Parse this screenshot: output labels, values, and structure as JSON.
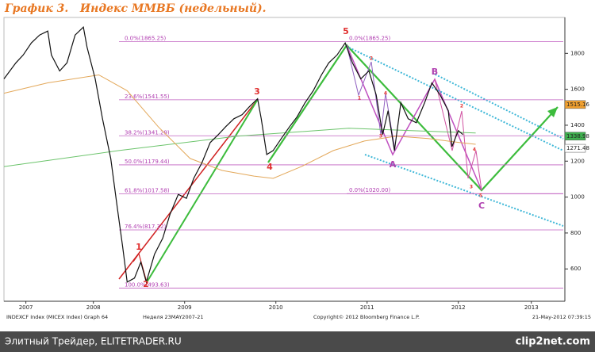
{
  "title": "График 3.   Индекс ММВБ (недельный).",
  "chart_data": {
    "type": "line",
    "xlim": [
      2007.52,
      2013.65
    ],
    "ylim": [
      420,
      2000
    ],
    "xticks": [
      {
        "value": 2007.76,
        "label": "2007"
      },
      {
        "value": 2008.5,
        "label": "2008"
      },
      {
        "value": 2009.5,
        "label": "2009"
      },
      {
        "value": 2010.5,
        "label": "2010"
      },
      {
        "value": 2011.5,
        "label": "2011"
      },
      {
        "value": 2012.5,
        "label": "2012"
      },
      {
        "value": 2013.3,
        "label": "2013"
      }
    ],
    "yticks": [
      600,
      800,
      1000,
      1200,
      1400,
      1600,
      1800
    ],
    "series": [
      {
        "color": "#111111",
        "x": [
          2007.52,
          2007.65,
          2007.73,
          2007.82,
          2007.91,
          2008.0,
          2008.04,
          2008.13,
          2008.21,
          2008.3,
          2008.39,
          2008.43,
          2008.52,
          2008.6,
          2008.69,
          2008.76,
          2008.82,
          2008.87,
          2008.95,
          2009.02,
          2009.08,
          2009.17,
          2009.26,
          2009.34,
          2009.43,
          2009.52,
          2009.6,
          2009.69,
          2009.78,
          2009.87,
          2009.95,
          2010.04,
          2010.13,
          2010.21,
          2010.3,
          2010.34,
          2010.4,
          2010.47,
          2010.56,
          2010.65,
          2010.73,
          2010.82,
          2010.91,
          2011.0,
          2011.08,
          2011.17,
          2011.26,
          2011.34,
          2011.43,
          2011.52,
          2011.6,
          2011.67,
          2011.73,
          2011.8,
          2011.87,
          2011.95,
          2012.04,
          2012.13,
          2012.21,
          2012.3,
          2012.39,
          2012.43,
          2012.5,
          2012.55
        ],
        "values": [
          1658,
          1747,
          1791,
          1858,
          1902,
          1924,
          1791,
          1702,
          1747,
          1902,
          1946,
          1835,
          1658,
          1436,
          1215,
          949,
          727,
          527,
          549,
          638,
          527,
          682,
          771,
          904,
          1015,
          993,
          1104,
          1192,
          1303,
          1348,
          1392,
          1436,
          1459,
          1503,
          1547,
          1436,
          1237,
          1259,
          1326,
          1392,
          1445,
          1525,
          1592,
          1680,
          1747,
          1791,
          1858,
          1747,
          1658,
          1702,
          1569,
          1348,
          1481,
          1259,
          1525,
          1436,
          1414,
          1525,
          1636,
          1569,
          1481,
          1281,
          1370,
          1348
        ]
      },
      {
        "color": "#e3a85a",
        "x": [
          2007.52,
          2008.0,
          2008.56,
          2008.87,
          2009.21,
          2009.56,
          2009.91,
          2010.26,
          2010.47,
          2010.78,
          2011.13,
          2011.47,
          2011.82,
          2012.17,
          2012.52,
          2012.69
        ],
        "values": [
          1578,
          1636,
          1680,
          1592,
          1392,
          1215,
          1148,
          1117,
          1104,
          1170,
          1259,
          1312,
          1339,
          1326,
          1303,
          1294
        ]
      },
      {
        "color": "#6cc46c",
        "x": [
          2007.52,
          2008.78,
          2010.08,
          2011.3,
          2012.69
        ],
        "values": [
          1170,
          1259,
          1339,
          1383,
          1357
        ]
      }
    ],
    "fib_levels": [
      {
        "value": 1865.25,
        "label": "0.0%(1865.25)"
      },
      {
        "value": 1541.55,
        "label": "23.6%(1541.55)"
      },
      {
        "value": 1341.29,
        "label": "38.2%(1341.29)"
      },
      {
        "value": 1179.44,
        "label": "50.0%(1179.44)"
      },
      {
        "value": 1017.58,
        "label": "61.8%(1017.58)"
      },
      {
        "value": 817.32,
        "label": "76.4%(817.32)"
      },
      {
        "value": 493.63,
        "label": "100.0%(493.63)"
      }
    ],
    "fib2_levels": [
      {
        "value": 1865.25,
        "label": "0.0%(1865.25)"
      },
      {
        "value": 1020.0,
        "label": "0.0%(1020.00)"
      }
    ],
    "price_labels": [
      {
        "value": 1515.16,
        "label": "1515.16",
        "color": "#f0a030"
      },
      {
        "value": 1338.98,
        "label": "1338.98",
        "color": "#3fb04f"
      },
      {
        "value": 1271.48,
        "label": "1271.48",
        "color": "#ffffff"
      }
    ],
    "annotations": [
      {
        "text": "1",
        "color": "#e03030"
      },
      {
        "text": "2",
        "color": "#e03030"
      },
      {
        "text": "3",
        "color": "#e03030"
      },
      {
        "text": "4",
        "color": "#e03030"
      },
      {
        "text": "5",
        "color": "#e03030"
      },
      {
        "text": "A",
        "color": "#b040b0"
      },
      {
        "text": "B",
        "color": "#b040b0"
      },
      {
        "text": "C",
        "color": "#b040b0"
      },
      {
        "text": "1",
        "color": "#e03030"
      },
      {
        "text": "2",
        "color": "#e03030"
      },
      {
        "text": "3",
        "color": "#e03030"
      },
      {
        "text": "4",
        "color": "#e03030"
      },
      {
        "text": "2",
        "color": "#e03030"
      },
      {
        "text": "4",
        "color": "#e03030"
      },
      {
        "text": "3",
        "color": "#e03030"
      },
      {
        "text": "5",
        "color": "#e03030"
      }
    ],
    "footer": [
      "INDEXCF Index (MICEX Index) Graph 64",
      "Неделя 23MAY2007-21",
      "Copyright© 2012 Bloomberg Finance L.P.",
      "21-May-2012 07:39:15"
    ]
  },
  "watermark": {
    "left": "Элитный Трейдер, ELITETRADER.RU",
    "logo": "clip2net.com"
  }
}
